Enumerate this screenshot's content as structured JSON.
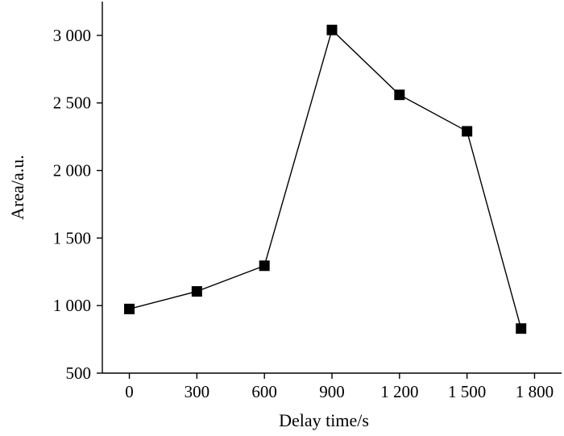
{
  "chart_data": {
    "type": "line",
    "xlabel": "Delay time/s",
    "ylabel": "Area/a.u.",
    "xlim": [
      -120,
      1920
    ],
    "ylim": [
      500,
      3250
    ],
    "x_ticks": [
      0,
      300,
      600,
      900,
      1200,
      1500,
      1800
    ],
    "x_tick_labels": [
      "0",
      "300",
      "600",
      "900",
      "1 200",
      "1 500",
      "1 800"
    ],
    "y_ticks": [
      500,
      1000,
      1500,
      2000,
      2500,
      3000
    ],
    "y_tick_labels": [
      "500",
      "1 000",
      "1 500",
      "2 000",
      "2 500",
      "3 000"
    ],
    "grid": false,
    "legend": "none",
    "series": [
      {
        "marker": "square",
        "color": "#000000",
        "x": [
          0,
          300,
          600,
          900,
          1200,
          1500,
          1740
        ],
        "y": [
          975,
          1105,
          1295,
          3040,
          2560,
          2290,
          830
        ]
      }
    ]
  }
}
